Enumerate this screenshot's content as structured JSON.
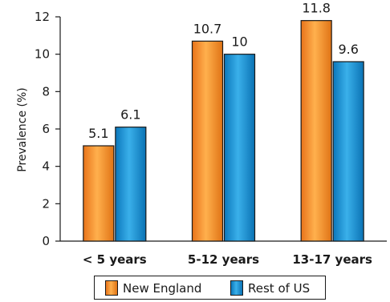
{
  "chart_data": {
    "type": "bar",
    "title": "",
    "xlabel": "",
    "ylabel": "Prevalence (%)",
    "ylim": [
      0,
      12
    ],
    "yticks": [
      0,
      2,
      4,
      6,
      8,
      10,
      12
    ],
    "grid": false,
    "legend_position": "bottom",
    "categories": [
      "< 5 years",
      "5-12 years",
      "13-17 years"
    ],
    "series": [
      {
        "name": "New England",
        "color": "#f28c1e",
        "values": [
          5.1,
          10.7,
          11.8
        ],
        "labels": [
          "5.1",
          "10.7",
          "11.8"
        ]
      },
      {
        "name": "Rest of US",
        "color": "#1a8fd0",
        "values": [
          6.1,
          10,
          9.6
        ],
        "labels": [
          "6.1",
          "10",
          "9.6"
        ]
      }
    ]
  }
}
